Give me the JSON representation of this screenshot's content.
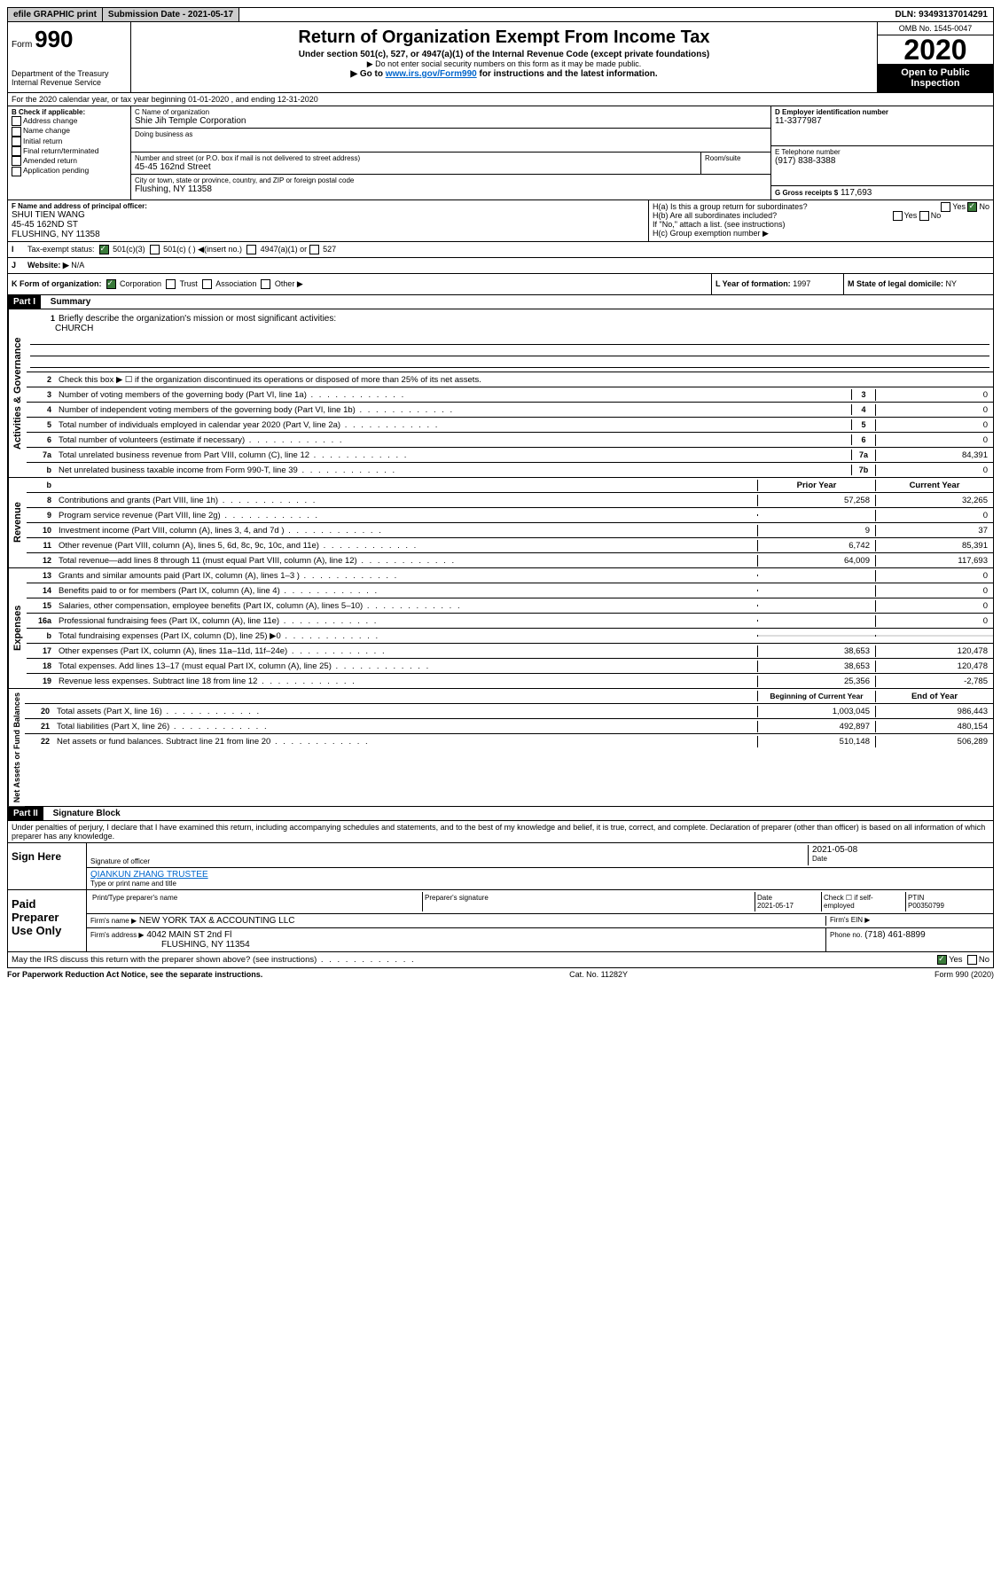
{
  "topbar": {
    "efile": "efile GRAPHIC print",
    "submission": "Submission Date - 2021-05-17",
    "dln": "DLN: 93493137014291"
  },
  "header": {
    "form_pre": "Form",
    "form_num": "990",
    "dept": "Department of the Treasury\nInternal Revenue Service",
    "title": "Return of Organization Exempt From Income Tax",
    "sub1": "Under section 501(c), 527, or 4947(a)(1) of the Internal Revenue Code (except private foundations)",
    "sub2": "▶ Do not enter social security numbers on this form as it may be made public.",
    "sub3_pre": "▶ Go to ",
    "sub3_link": "www.irs.gov/Form990",
    "sub3_post": " for instructions and the latest information.",
    "omb": "OMB No. 1545-0047",
    "year": "2020",
    "open": "Open to Public Inspection"
  },
  "line_a": "For the 2020 calendar year, or tax year beginning 01-01-2020    , and ending 12-31-2020",
  "box_b": {
    "title": "B Check if applicable:",
    "items": [
      "Address change",
      "Name change",
      "Initial return",
      "Final return/terminated",
      "Amended return",
      "Application pending"
    ]
  },
  "box_c": {
    "label_name": "C Name of organization",
    "name": "Shie Jih Temple Corporation",
    "dba_label": "Doing business as",
    "dba": "",
    "addr_label": "Number and street (or P.O. box if mail is not delivered to street address)",
    "room": "Room/suite",
    "addr": "45-45 162nd Street",
    "city_label": "City or town, state or province, country, and ZIP or foreign postal code",
    "city": "Flushing, NY  11358"
  },
  "box_d": {
    "label": "D Employer identification number",
    "value": "11-3377987"
  },
  "box_e": {
    "label": "E Telephone number",
    "value": "(917) 838-3388"
  },
  "box_g": {
    "label": "G Gross receipts $",
    "value": "117,693"
  },
  "box_f": {
    "label": "F  Name and address of principal officer:",
    "name": "SHUI TIEN WANG",
    "addr1": "45-45 162ND ST",
    "addr2": "FLUSHING, NY  11358"
  },
  "box_h": {
    "a": "H(a)  Is this a group return for subordinates?",
    "a_yes": "Yes",
    "a_no": "No",
    "b": "H(b)  Are all subordinates included?",
    "b_note": "If \"No,\" attach a list. (see instructions)",
    "c": "H(c)  Group exemption number ▶"
  },
  "line_i": {
    "label": "Tax-exempt status:",
    "opt1": "501(c)(3)",
    "opt2": "501(c) (  ) ◀(insert no.)",
    "opt3": "4947(a)(1) or",
    "opt4": "527"
  },
  "line_j": {
    "label": "Website: ▶",
    "value": "N/A"
  },
  "line_k": {
    "label": "K Form of organization:",
    "opts": [
      "Corporation",
      "Trust",
      "Association",
      "Other ▶"
    ]
  },
  "line_l": {
    "label": "L Year of formation:",
    "value": "1997"
  },
  "line_m": {
    "label": "M State of legal domicile:",
    "value": "NY"
  },
  "part1": {
    "header": "Part I",
    "title": "Summary"
  },
  "part2": {
    "header": "Part II",
    "title": "Signature Block"
  },
  "sidebars": [
    "Activities & Governance",
    "Revenue",
    "Expenses",
    "Net Assets or Fund Balances"
  ],
  "summary": {
    "line1": {
      "label": "Briefly describe the organization's mission or most significant activities:",
      "value": "CHURCH"
    },
    "line2": "Check this box ▶ ☐  if the organization discontinued its operations or disposed of more than 25% of its net assets.",
    "rows_gov": [
      {
        "n": "3",
        "label": "Number of voting members of the governing body (Part VI, line 1a)",
        "box": "3",
        "v": "0"
      },
      {
        "n": "4",
        "label": "Number of independent voting members of the governing body (Part VI, line 1b)",
        "box": "4",
        "v": "0"
      },
      {
        "n": "5",
        "label": "Total number of individuals employed in calendar year 2020 (Part V, line 2a)",
        "box": "5",
        "v": "0"
      },
      {
        "n": "6",
        "label": "Total number of volunteers (estimate if necessary)",
        "box": "6",
        "v": "0"
      },
      {
        "n": "7a",
        "label": "Total unrelated business revenue from Part VIII, column (C), line 12",
        "box": "7a",
        "v": "84,391"
      },
      {
        "n": "b",
        "label": "Net unrelated business taxable income from Form 990-T, line 39",
        "box": "7b",
        "v": "0"
      }
    ],
    "col_prior": "Prior Year",
    "col_current": "Current Year",
    "rows_rev": [
      {
        "n": "8",
        "label": "Contributions and grants (Part VIII, line 1h)",
        "p": "57,258",
        "c": "32,265"
      },
      {
        "n": "9",
        "label": "Program service revenue (Part VIII, line 2g)",
        "p": "",
        "c": "0"
      },
      {
        "n": "10",
        "label": "Investment income (Part VIII, column (A), lines 3, 4, and 7d )",
        "p": "9",
        "c": "37"
      },
      {
        "n": "11",
        "label": "Other revenue (Part VIII, column (A), lines 5, 6d, 8c, 9c, 10c, and 11e)",
        "p": "6,742",
        "c": "85,391"
      },
      {
        "n": "12",
        "label": "Total revenue—add lines 8 through 11 (must equal Part VIII, column (A), line 12)",
        "p": "64,009",
        "c": "117,693"
      }
    ],
    "rows_exp": [
      {
        "n": "13",
        "label": "Grants and similar amounts paid (Part IX, column (A), lines 1–3 )",
        "p": "",
        "c": "0"
      },
      {
        "n": "14",
        "label": "Benefits paid to or for members (Part IX, column (A), line 4)",
        "p": "",
        "c": "0"
      },
      {
        "n": "15",
        "label": "Salaries, other compensation, employee benefits (Part IX, column (A), lines 5–10)",
        "p": "",
        "c": "0"
      },
      {
        "n": "16a",
        "label": "Professional fundraising fees (Part IX, column (A), line 11e)",
        "p": "",
        "c": "0"
      },
      {
        "n": "b",
        "label": "Total fundraising expenses (Part IX, column (D), line 25) ▶0",
        "p": "shaded",
        "c": "shaded"
      },
      {
        "n": "17",
        "label": "Other expenses (Part IX, column (A), lines 11a–11d, 11f–24e)",
        "p": "38,653",
        "c": "120,478"
      },
      {
        "n": "18",
        "label": "Total expenses. Add lines 13–17 (must equal Part IX, column (A), line 25)",
        "p": "38,653",
        "c": "120,478"
      },
      {
        "n": "19",
        "label": "Revenue less expenses. Subtract line 18 from line 12",
        "p": "25,356",
        "c": "-2,785"
      }
    ],
    "col_begin": "Beginning of Current Year",
    "col_end": "End of Year",
    "rows_net": [
      {
        "n": "20",
        "label": "Total assets (Part X, line 16)",
        "p": "1,003,045",
        "c": "986,443"
      },
      {
        "n": "21",
        "label": "Total liabilities (Part X, line 26)",
        "p": "492,897",
        "c": "480,154"
      },
      {
        "n": "22",
        "label": "Net assets or fund balances. Subtract line 21 from line 20",
        "p": "510,148",
        "c": "506,289"
      }
    ]
  },
  "perjury": "Under penalties of perjury, I declare that I have examined this return, including accompanying schedules and statements, and to the best of my knowledge and belief, it is true, correct, and complete. Declaration of preparer (other than officer) is based on all information of which preparer has any knowledge.",
  "sign": {
    "left": "Sign Here",
    "sig_officer": "Signature of officer",
    "date": "2021-05-08",
    "date_label": "Date",
    "name": "QIANKUN ZHANG  TRUSTEE",
    "name_label": "Type or print name and title"
  },
  "paid": {
    "left": "Paid Preparer Use Only",
    "h1": "Print/Type preparer's name",
    "h2": "Preparer's signature",
    "h3": "Date",
    "h4": "Check ☐ if self-employed",
    "h5": "PTIN",
    "date": "2021-05-17",
    "ptin": "P00350799",
    "firm_label": "Firm's name   ▶",
    "firm": "NEW YORK TAX & ACCOUNTING LLC",
    "ein_label": "Firm's EIN ▶",
    "addr_label": "Firm's address ▶",
    "addr1": "4042 MAIN ST 2nd Fl",
    "addr2": "FLUSHING, NY  11354",
    "phone_label": "Phone no.",
    "phone": "(718) 461-8899"
  },
  "discuss": "May the IRS discuss this return with the preparer shown above? (see instructions)",
  "discuss_yes": "Yes",
  "discuss_no": "No",
  "footer": {
    "left": "For Paperwork Reduction Act Notice, see the separate instructions.",
    "mid": "Cat. No. 11282Y",
    "right": "Form 990 (2020)"
  }
}
